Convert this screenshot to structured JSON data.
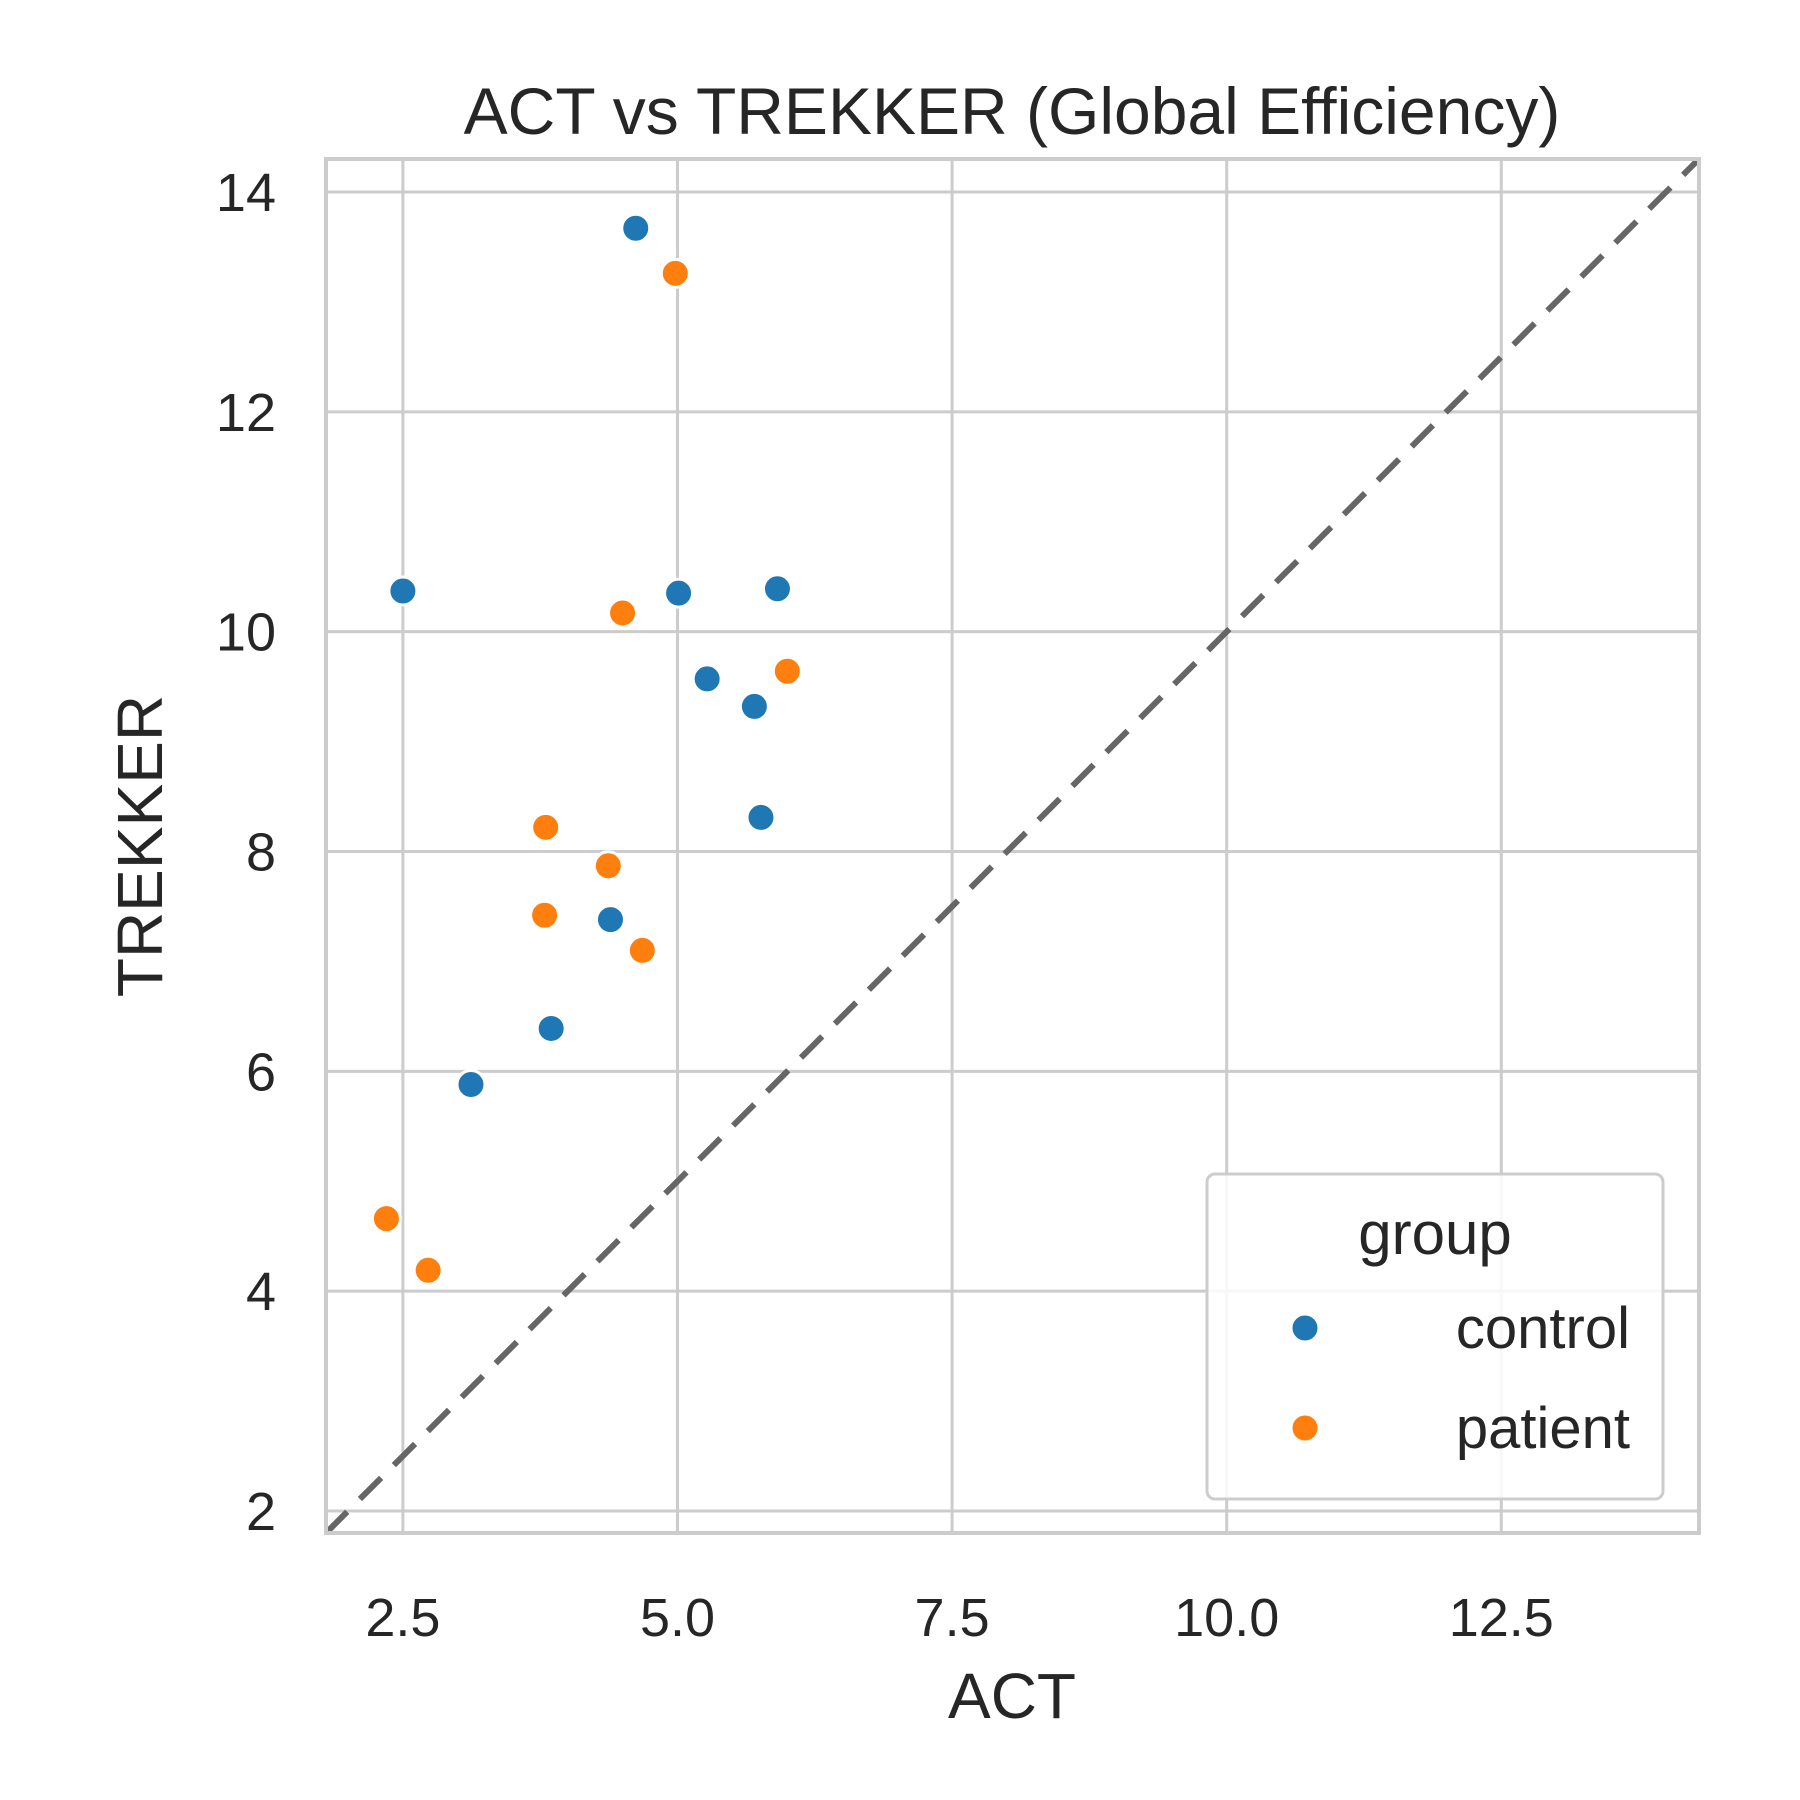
{
  "chart_data": {
    "type": "scatter",
    "title": "ACT vs TREKKER (Global Efficiency)",
    "xlabel": "ACT",
    "ylabel": "TREKKER",
    "xlim": [
      1.8,
      14.3
    ],
    "ylim": [
      1.8,
      14.3
    ],
    "x_ticks": [
      2.5,
      5.0,
      7.5,
      10.0,
      12.5
    ],
    "x_tick_labels": [
      "2.5",
      "5.0",
      "7.5",
      "10.0",
      "12.5"
    ],
    "y_ticks": [
      2,
      4,
      6,
      8,
      10,
      12,
      14
    ],
    "y_tick_labels": [
      "2",
      "4",
      "6",
      "8",
      "10",
      "12",
      "14"
    ],
    "grid": true,
    "identity_line": true,
    "legend": {
      "title": "group",
      "placement": "bottom-right",
      "entries": [
        {
          "label": "control",
          "color": "#1f77b4"
        },
        {
          "label": "patient",
          "color": "#ff7f0e"
        }
      ]
    },
    "series": [
      {
        "name": "control",
        "color": "#1f77b4",
        "points": [
          {
            "x": 4.62,
            "y": 13.67
          },
          {
            "x": 2.5,
            "y": 10.37
          },
          {
            "x": 5.01,
            "y": 10.35
          },
          {
            "x": 5.91,
            "y": 10.39
          },
          {
            "x": 5.27,
            "y": 9.57
          },
          {
            "x": 5.7,
            "y": 9.32
          },
          {
            "x": 5.76,
            "y": 8.31
          },
          {
            "x": 4.39,
            "y": 7.38
          },
          {
            "x": 3.85,
            "y": 6.39
          },
          {
            "x": 3.12,
            "y": 5.88
          }
        ]
      },
      {
        "name": "patient",
        "color": "#ff7f0e",
        "points": [
          {
            "x": 4.98,
            "y": 13.26
          },
          {
            "x": 4.5,
            "y": 10.17
          },
          {
            "x": 6.0,
            "y": 9.64
          },
          {
            "x": 3.8,
            "y": 8.22
          },
          {
            "x": 4.37,
            "y": 7.87
          },
          {
            "x": 3.79,
            "y": 7.42
          },
          {
            "x": 4.68,
            "y": 7.1
          },
          {
            "x": 2.35,
            "y": 4.66
          },
          {
            "x": 2.73,
            "y": 4.19
          }
        ]
      }
    ]
  }
}
